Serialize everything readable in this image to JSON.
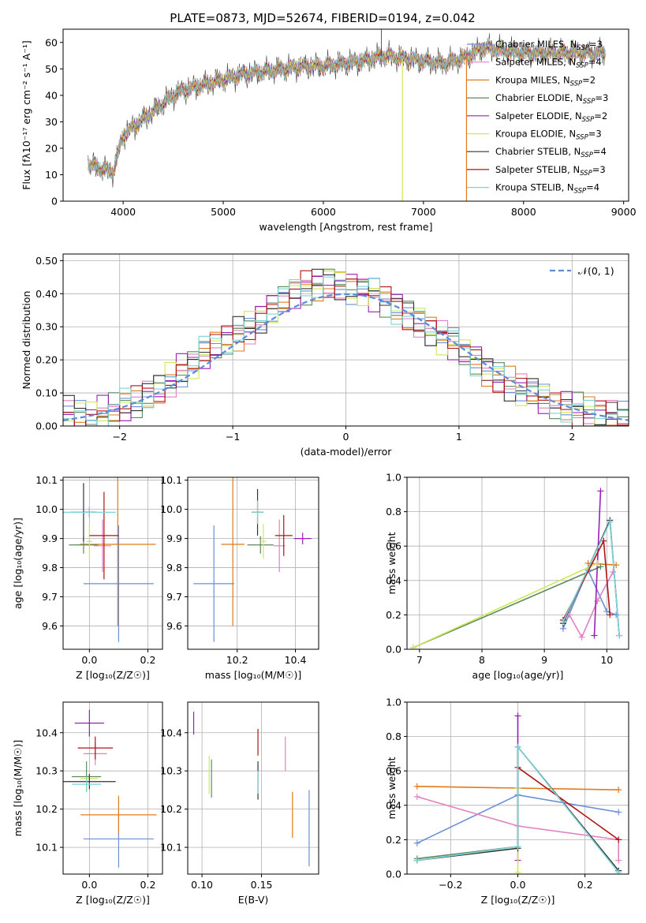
{
  "colors": {
    "chabrier_miles": "#6b8fd6",
    "salpeter_miles": "#e381c0",
    "kroupa_miles": "#e07b1c",
    "chabrier_elodie": "#5e8a5e",
    "salpeter_elodie": "#9a1fb8",
    "kroupa_elodie": "#cfe85a",
    "chabrier_stelib": "#333333",
    "salpeter_stelib": "#b01414",
    "kroupa_stelib": "#7fd3d6",
    "gaussian": "#5b8bd9"
  },
  "chart_data": [
    {
      "type": "line",
      "title": "PLATE=0873, MJD=52674, FIBERID=0194, z=0.042",
      "xlabel": "wavelength [Angstrom, rest frame]",
      "ylabel": "Flux [fλ10⁻¹⁷ erg cm⁻² s⁻¹ A⁻¹]",
      "xlim": [
        3400,
        9050
      ],
      "ylim": [
        0,
        65
      ],
      "xticks": [
        4000,
        5000,
        6000,
        7000,
        8000,
        9000
      ],
      "yticks": [
        0,
        10,
        20,
        30,
        40,
        50,
        60
      ],
      "legend_position": "top-right",
      "legend": [
        {
          "label": "Chabrier MILES, N",
          "sub": "SSP",
          "rest": "=3"
        },
        {
          "label": "Salpeter MILES, N",
          "sub": "SSP",
          "rest": "=4"
        },
        {
          "label": "Kroupa MILES, N",
          "sub": "SSP",
          "rest": "=2"
        },
        {
          "label": "Chabrier ELODIE, N",
          "sub": "SSP",
          "rest": "=3"
        },
        {
          "label": "Salpeter ELODIE, N",
          "sub": "SSP",
          "rest": "=2"
        },
        {
          "label": "Kroupa ELODIE, N",
          "sub": "SSP",
          "rest": "=3"
        },
        {
          "label": "Chabrier STELIB, N",
          "sub": "SSP",
          "rest": "=4"
        },
        {
          "label": "Salpeter STELIB, N",
          "sub": "SSP",
          "rest": "=3"
        },
        {
          "label": "Kroupa STELIB, N",
          "sub": "SSP",
          "rest": "=4"
        }
      ],
      "continuum": {
        "x": [
          3650,
          3800,
          3900,
          4000,
          4100,
          4200,
          4300,
          4400,
          4500,
          4600,
          4700,
          4800,
          4900,
          5000,
          5200,
          5400,
          5600,
          5800,
          6000,
          6200,
          6400,
          6600,
          6800,
          7000,
          7200,
          7400,
          7600,
          7800,
          8000,
          8200,
          8400,
          8600,
          8800
        ],
        "y": [
          14,
          12,
          11,
          25,
          28,
          31,
          34,
          37,
          40,
          42,
          43,
          44,
          45,
          46,
          48,
          49,
          50,
          51,
          51,
          52,
          53,
          55,
          54,
          53,
          52,
          54,
          58,
          57,
          56,
          56,
          56,
          56,
          56
        ]
      },
      "features": [
        {
          "label": "stelib-spike",
          "x": 6580,
          "y": 66
        },
        {
          "label": "elodie-drop",
          "x": 6790,
          "y": 0
        },
        {
          "label": "stelib-drop",
          "x": 7430,
          "y": 0
        }
      ]
    },
    {
      "type": "bar",
      "subtype": "step-histogram",
      "xlabel": "(data-model)/error",
      "ylabel": "Normed distribution",
      "xlim": [
        -2.5,
        2.5
      ],
      "ylim": [
        0,
        0.52
      ],
      "xticks": [
        -2,
        -1,
        0,
        1,
        2
      ],
      "yticks": [
        0.0,
        0.1,
        0.2,
        0.3,
        0.4,
        0.5
      ],
      "legend_position": "top-right",
      "gaussian_label": "𝒩(0, 1)",
      "bin_edges_start": -2.5,
      "bin_width": 0.1,
      "base_profile": [
        0.04,
        0.03,
        0.03,
        0.04,
        0.05,
        0.06,
        0.07,
        0.09,
        0.11,
        0.14,
        0.17,
        0.19,
        0.22,
        0.24,
        0.26,
        0.28,
        0.3,
        0.33,
        0.36,
        0.38,
        0.4,
        0.42,
        0.43,
        0.44,
        0.43,
        0.42,
        0.41,
        0.4,
        0.38,
        0.36,
        0.34,
        0.32,
        0.29,
        0.27,
        0.25,
        0.22,
        0.2,
        0.17,
        0.15,
        0.13,
        0.11,
        0.1,
        0.08,
        0.07,
        0.06,
        0.05,
        0.04,
        0.03,
        0.03,
        0.02
      ]
    },
    {
      "type": "scatter",
      "subtype": "errorbar",
      "xlabel": "Z [log₁₀(Z/Z☉)]",
      "ylabel": "age  [log₁₀(age/yr)]",
      "xlim": [
        -0.09,
        0.25
      ],
      "ylim": [
        9.52,
        10.11
      ],
      "xticks": [
        0.0,
        0.2
      ],
      "yticks": [
        9.6,
        9.7,
        9.8,
        9.9,
        10.0,
        10.1
      ],
      "points": [
        {
          "series": "chabrier_miles",
          "x": 0.1,
          "xerr": 0.12,
          "y": 9.745,
          "yerr": 0.2
        },
        {
          "series": "salpeter_miles",
          "x": 0.045,
          "xerr": 0.03,
          "y": 9.875,
          "yerr": 0.09
        },
        {
          "series": "kroupa_miles",
          "x": 0.097,
          "xerr": 0.13,
          "y": 9.88,
          "yerr": 0.28
        },
        {
          "series": "chabrier_elodie",
          "x": -0.02,
          "xerr": 0.05,
          "y": 9.878,
          "yerr": 0.03
        },
        {
          "series": "salpeter_elodie",
          "x": 0.0,
          "xerr": 0.02,
          "y": 9.99,
          "yerr": 0.015
        },
        {
          "series": "kroupa_elodie",
          "x": 0.0,
          "xerr": 0.01,
          "y": 9.89,
          "yerr": 0.06
        },
        {
          "series": "chabrier_stelib",
          "x": -0.02,
          "xerr": 0.045,
          "y": 9.99,
          "yerr": 0.1
        },
        {
          "series": "salpeter_stelib",
          "x": 0.05,
          "xerr": 0.05,
          "y": 9.91,
          "yerr": 0.15
        },
        {
          "series": "kroupa_stelib",
          "x": 0.0,
          "xerr": 0.09,
          "y": 9.99,
          "yerr": 0.02
        }
      ]
    },
    {
      "type": "scatter",
      "subtype": "errorbar",
      "xlabel": "mass [log₁₀(M/M☉)]",
      "ylabel": "",
      "xlim": [
        10.03,
        10.48
      ],
      "ylim": [
        9.52,
        10.11
      ],
      "xticks": [
        10.2,
        10.4
      ],
      "yticks": [
        9.6,
        9.7,
        9.8,
        9.9,
        10.0,
        10.1
      ],
      "points": [
        {
          "series": "chabrier_miles",
          "x": 10.12,
          "xerr": 0.07,
          "y": 9.745,
          "yerr": 0.2
        },
        {
          "series": "salpeter_miles",
          "x": 10.345,
          "xerr": 0.02,
          "y": 9.875,
          "yerr": 0.09
        },
        {
          "series": "kroupa_miles",
          "x": 10.185,
          "xerr": 0.04,
          "y": 9.88,
          "yerr": 0.28
        },
        {
          "series": "chabrier_elodie",
          "x": 10.28,
          "xerr": 0.045,
          "y": 9.878,
          "yerr": 0.03
        },
        {
          "series": "salpeter_elodie",
          "x": 10.425,
          "xerr": 0.03,
          "y": 9.9,
          "yerr": 0.02
        },
        {
          "series": "kroupa_elodie",
          "x": 10.29,
          "xerr": 0.01,
          "y": 9.89,
          "yerr": 0.06
        },
        {
          "series": "chabrier_stelib",
          "x": 10.27,
          "xerr": 0.02,
          "y": 9.99,
          "yerr": 0.08
        },
        {
          "series": "salpeter_stelib",
          "x": 10.36,
          "xerr": 0.03,
          "y": 9.91,
          "yerr": 0.07
        },
        {
          "series": "kroupa_stelib",
          "x": 10.27,
          "xerr": 0.02,
          "y": 9.99,
          "yerr": 0.04
        }
      ]
    },
    {
      "type": "line",
      "xlabel": "age  [log₁₀(age/yr)]",
      "ylabel": "mass weight",
      "xlim": [
        6.8,
        10.35
      ],
      "ylim": [
        0,
        1.0
      ],
      "xticks": [
        7,
        8,
        9,
        10
      ],
      "yticks": [
        0.0,
        0.2,
        0.4,
        0.6,
        0.8,
        1.0
      ],
      "series": [
        {
          "name": "chabrier_miles",
          "x": [
            9.3,
            9.7,
            10.0,
            10.15
          ],
          "y": [
            0.12,
            0.46,
            0.22,
            0.2
          ]
        },
        {
          "name": "salpeter_miles",
          "x": [
            9.4,
            9.6,
            9.85,
            10.1
          ],
          "y": [
            0.2,
            0.07,
            0.28,
            0.45
          ]
        },
        {
          "name": "kroupa_miles",
          "x": [
            9.7,
            10.15
          ],
          "y": [
            0.5,
            0.49
          ]
        },
        {
          "name": "chabrier_elodie",
          "x": [
            6.9,
            9.9
          ],
          "y": [
            0.01,
            0.48
          ]
        },
        {
          "name": "salpeter_elodie",
          "x": [
            9.8,
            9.9
          ],
          "y": [
            0.08,
            0.92
          ]
        },
        {
          "name": "kroupa_elodie",
          "x": [
            6.9,
            9.85
          ],
          "y": [
            0.01,
            0.5
          ]
        },
        {
          "name": "chabrier_stelib",
          "x": [
            9.3,
            10.05,
            10.2
          ],
          "y": [
            0.15,
            0.75,
            0.08
          ]
        },
        {
          "name": "salpeter_stelib",
          "x": [
            9.3,
            9.95,
            10.05
          ],
          "y": [
            0.17,
            0.63,
            0.2
          ]
        },
        {
          "name": "kroupa_stelib",
          "x": [
            9.3,
            10.05,
            10.2
          ],
          "y": [
            0.16,
            0.74,
            0.08
          ]
        }
      ]
    },
    {
      "type": "scatter",
      "subtype": "errorbar",
      "xlabel": "Z [log₁₀(Z/Z☉)]",
      "ylabel": "mass [log₁₀(M/M☉)]",
      "xlim": [
        -0.09,
        0.25
      ],
      "ylim": [
        10.03,
        10.48
      ],
      "xticks": [
        0.0,
        0.2
      ],
      "yticks": [
        10.1,
        10.2,
        10.3,
        10.4
      ],
      "points": [
        {
          "series": "chabrier_miles",
          "x": 0.1,
          "xerr": 0.12,
          "y": 10.122,
          "yerr": 0.075
        },
        {
          "series": "salpeter_miles",
          "x": 0.02,
          "xerr": 0.04,
          "y": 10.345,
          "yerr": 0.03
        },
        {
          "series": "kroupa_miles",
          "x": 0.1,
          "xerr": 0.13,
          "y": 10.185,
          "yerr": 0.05
        },
        {
          "series": "chabrier_elodie",
          "x": -0.01,
          "xerr": 0.05,
          "y": 10.285,
          "yerr": 0.04
        },
        {
          "series": "salpeter_elodie",
          "x": 0.0,
          "xerr": 0.05,
          "y": 10.425,
          "yerr": 0.035
        },
        {
          "series": "kroupa_elodie",
          "x": 0.0,
          "xerr": 0.03,
          "y": 10.28,
          "yerr": 0.01
        },
        {
          "series": "chabrier_stelib",
          "x": 0.0,
          "xerr": 0.09,
          "y": 10.272,
          "yerr": 0.02
        },
        {
          "series": "salpeter_stelib",
          "x": 0.02,
          "xerr": 0.06,
          "y": 10.36,
          "yerr": 0.03
        },
        {
          "series": "kroupa_stelib",
          "x": -0.01,
          "xerr": 0.05,
          "y": 10.265,
          "yerr": 0.02
        }
      ]
    },
    {
      "type": "scatter",
      "subtype": "errorbar",
      "xlabel": "E(B-V)",
      "ylabel": "",
      "xlim": [
        0.088,
        0.198
      ],
      "ylim": [
        10.03,
        10.48
      ],
      "xticks": [
        0.1,
        0.15
      ],
      "yticks": [
        10.1,
        10.2,
        10.3,
        10.4
      ],
      "points": [
        {
          "series": "chabrier_miles",
          "x": 0.19,
          "xerr": 0,
          "y": 10.15,
          "yerr": 0.1
        },
        {
          "series": "salpeter_miles",
          "x": 0.17,
          "xerr": 0,
          "y": 10.345,
          "yerr": 0.045
        },
        {
          "series": "kroupa_miles",
          "x": 0.176,
          "xerr": 0,
          "y": 10.185,
          "yerr": 0.06
        },
        {
          "series": "chabrier_elodie",
          "x": 0.108,
          "xerr": 0,
          "y": 10.28,
          "yerr": 0.05
        },
        {
          "series": "salpeter_elodie",
          "x": 0.093,
          "xerr": 0,
          "y": 10.425,
          "yerr": 0.03
        },
        {
          "series": "kroupa_elodie",
          "x": 0.106,
          "xerr": 0,
          "y": 10.29,
          "yerr": 0.05
        },
        {
          "series": "chabrier_stelib",
          "x": 0.147,
          "xerr": 0,
          "y": 10.275,
          "yerr": 0.05
        },
        {
          "series": "salpeter_stelib",
          "x": 0.147,
          "xerr": 0,
          "y": 10.375,
          "yerr": 0.035
        },
        {
          "series": "kroupa_stelib",
          "x": 0.147,
          "xerr": 0,
          "y": 10.27,
          "yerr": 0.03
        }
      ]
    },
    {
      "type": "line",
      "xlabel": "Z [log₁₀(Z/Z☉)]",
      "ylabel": "mass weight",
      "xlim": [
        -0.33,
        0.33
      ],
      "ylim": [
        0,
        1.0
      ],
      "xticks": [
        -0.2,
        0.0,
        0.2
      ],
      "yticks": [
        0.0,
        0.2,
        0.4,
        0.6,
        0.8,
        1.0
      ],
      "series": [
        {
          "name": "chabrier_miles",
          "x": [
            -0.3,
            0.0,
            0.3
          ],
          "y": [
            0.18,
            0.46,
            0.36
          ]
        },
        {
          "name": "salpeter_miles",
          "x": [
            -0.3,
            0.0,
            0.3,
            0.3
          ],
          "y": [
            0.45,
            0.28,
            0.2,
            0.08
          ]
        },
        {
          "name": "kroupa_miles",
          "x": [
            -0.3,
            0.3
          ],
          "y": [
            0.51,
            0.49
          ]
        },
        {
          "name": "chabrier_elodie",
          "x": [
            -0.3,
            0.0
          ],
          "y": [
            0.09,
            0.16
          ]
        },
        {
          "name": "salpeter_elodie",
          "x": [
            0.0,
            0.0
          ],
          "y": [
            0.92,
            0.08
          ]
        },
        {
          "name": "kroupa_elodie",
          "x": [
            0.0,
            0.0
          ],
          "y": [
            0.5,
            0.01
          ]
        },
        {
          "name": "chabrier_stelib",
          "x": [
            -0.3,
            0.0,
            0.0,
            0.3
          ],
          "y": [
            0.08,
            0.15,
            0.74,
            0.02
          ]
        },
        {
          "name": "salpeter_stelib",
          "x": [
            0.0,
            0.3
          ],
          "y": [
            0.62,
            0.2
          ]
        },
        {
          "name": "kroupa_stelib",
          "x": [
            -0.3,
            0.0,
            0.0,
            0.3
          ],
          "y": [
            0.08,
            0.16,
            0.74,
            0.01
          ]
        }
      ]
    }
  ]
}
